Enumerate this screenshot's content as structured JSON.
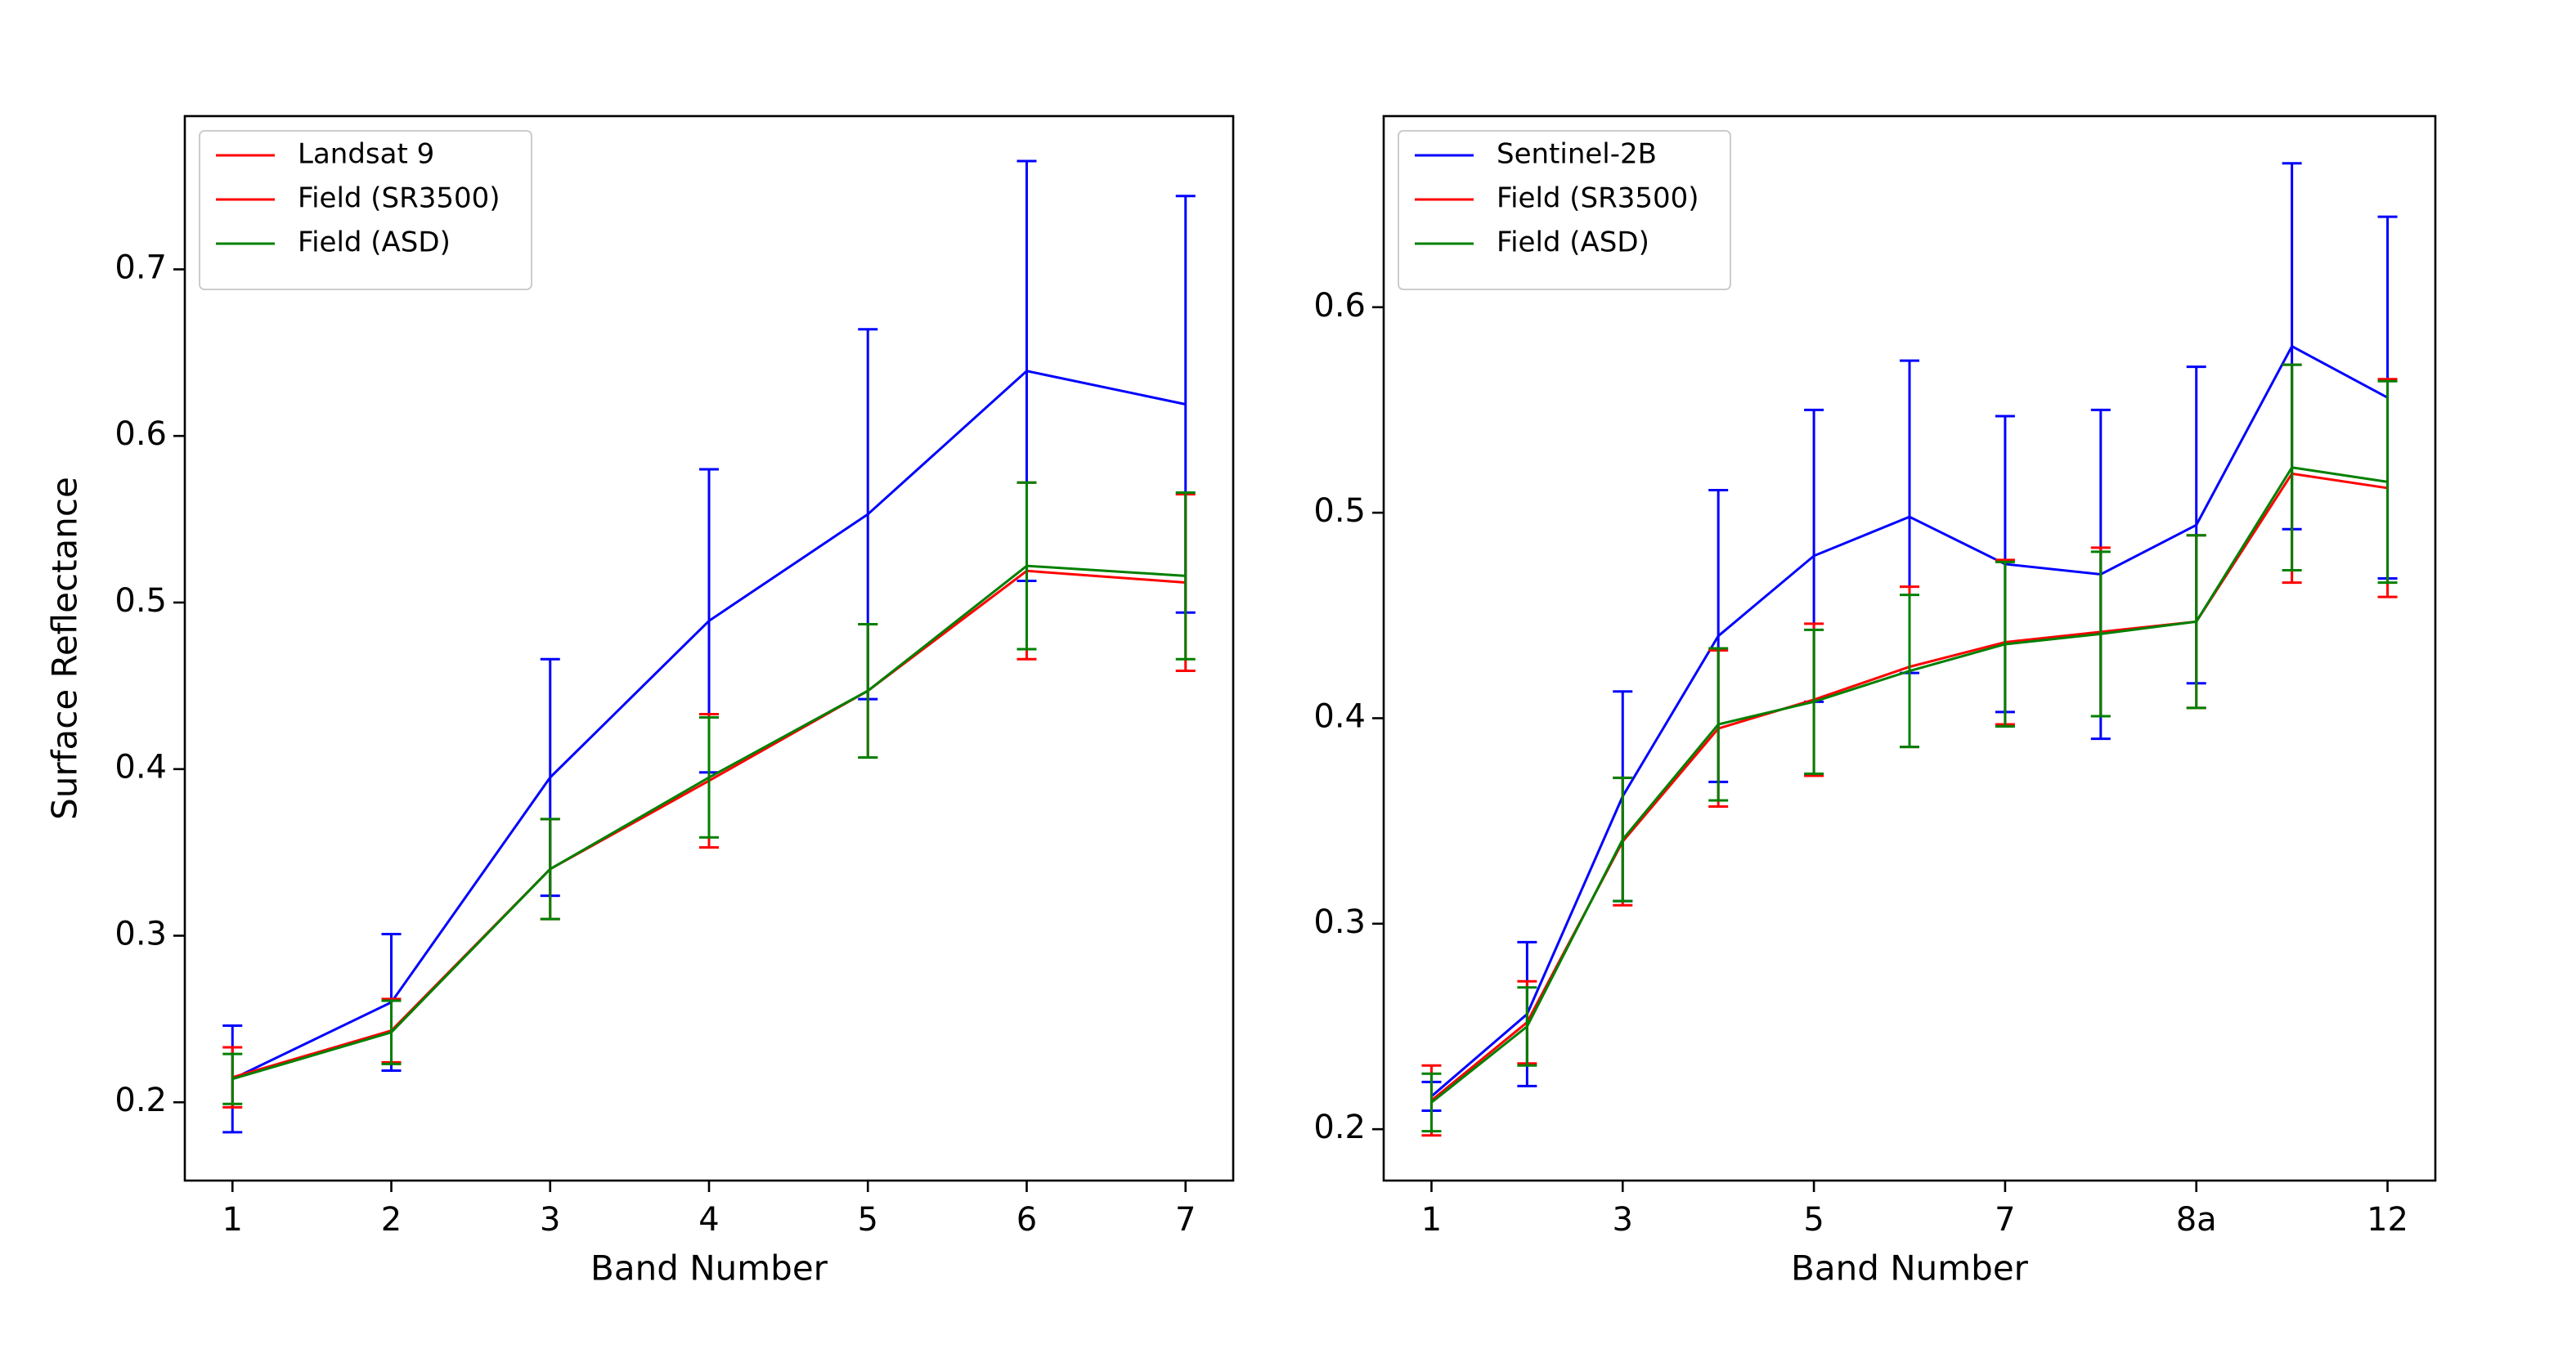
{
  "chart_data": [
    {
      "type": "line",
      "ylabel": "Surface Reflectance",
      "xlabel": "Band Number",
      "x": [
        1,
        2,
        3,
        4,
        5,
        6,
        7
      ],
      "xlim": [
        0.7,
        7.3
      ],
      "xticks": [
        1,
        2,
        3,
        4,
        5,
        6,
        7
      ],
      "ylim": [
        0.153,
        0.792
      ],
      "yticks": [
        0.2,
        0.3,
        0.4,
        0.5,
        0.6,
        0.7
      ],
      "legend": "upper left",
      "series": [
        {
          "name": "Landsat 9",
          "color": "#0000ff",
          "legend_color": "#ff0000",
          "values": [
            0.214,
            0.26,
            0.395,
            0.489,
            0.553,
            0.639,
            0.619
          ],
          "errors": [
            0.032,
            0.041,
            0.071,
            0.091,
            0.111,
            0.126,
            0.125
          ]
        },
        {
          "name": "Field (SR3500)",
          "color": "#ff0000",
          "values": [
            0.215,
            0.243,
            0.34,
            0.393,
            0.447,
            0.519,
            0.512
          ],
          "errors": [
            0.018,
            0.019,
            0.03,
            0.04,
            0.04,
            0.053,
            0.053
          ]
        },
        {
          "name": "Field (ASD)",
          "color": "#008000",
          "values": [
            0.214,
            0.242,
            0.34,
            0.395,
            0.447,
            0.522,
            0.516
          ],
          "errors": [
            0.015,
            0.019,
            0.03,
            0.036,
            0.04,
            0.05,
            0.05
          ]
        }
      ]
    },
    {
      "type": "line",
      "xlabel": "Band Number",
      "categories": [
        "1",
        null,
        "3",
        null,
        "5",
        null,
        "7",
        null,
        "8a",
        null,
        "12"
      ],
      "ylim": [
        0.175,
        0.693
      ],
      "yticks": [
        0.2,
        0.3,
        0.4,
        0.5,
        0.6
      ],
      "legend": "upper left",
      "series": [
        {
          "name": "Sentinel-2B",
          "color": "#0000ff",
          "values": [
            0.216,
            0.256,
            0.362,
            0.44,
            0.479,
            0.498,
            0.475,
            0.47,
            0.494,
            0.581,
            0.556
          ],
          "errors": [
            0.007,
            0.035,
            0.051,
            0.071,
            0.071,
            0.076,
            0.072,
            0.08,
            0.077,
            0.089,
            0.088
          ]
        },
        {
          "name": "Field (SR3500)",
          "color": "#ff0000",
          "values": [
            0.214,
            0.252,
            0.34,
            0.395,
            0.409,
            0.425,
            0.437,
            0.442,
            0.447,
            0.519,
            0.512
          ],
          "errors": [
            0.017,
            0.02,
            0.031,
            0.038,
            0.037,
            0.039,
            0.04,
            0.041,
            0.042,
            0.053,
            0.053
          ]
        },
        {
          "name": "Field (ASD)",
          "color": "#008000",
          "values": [
            0.213,
            0.25,
            0.341,
            0.397,
            0.408,
            0.423,
            0.436,
            0.441,
            0.447,
            0.522,
            0.515
          ],
          "errors": [
            0.014,
            0.019,
            0.03,
            0.037,
            0.035,
            0.037,
            0.04,
            0.04,
            0.042,
            0.05,
            0.049
          ]
        }
      ]
    }
  ]
}
